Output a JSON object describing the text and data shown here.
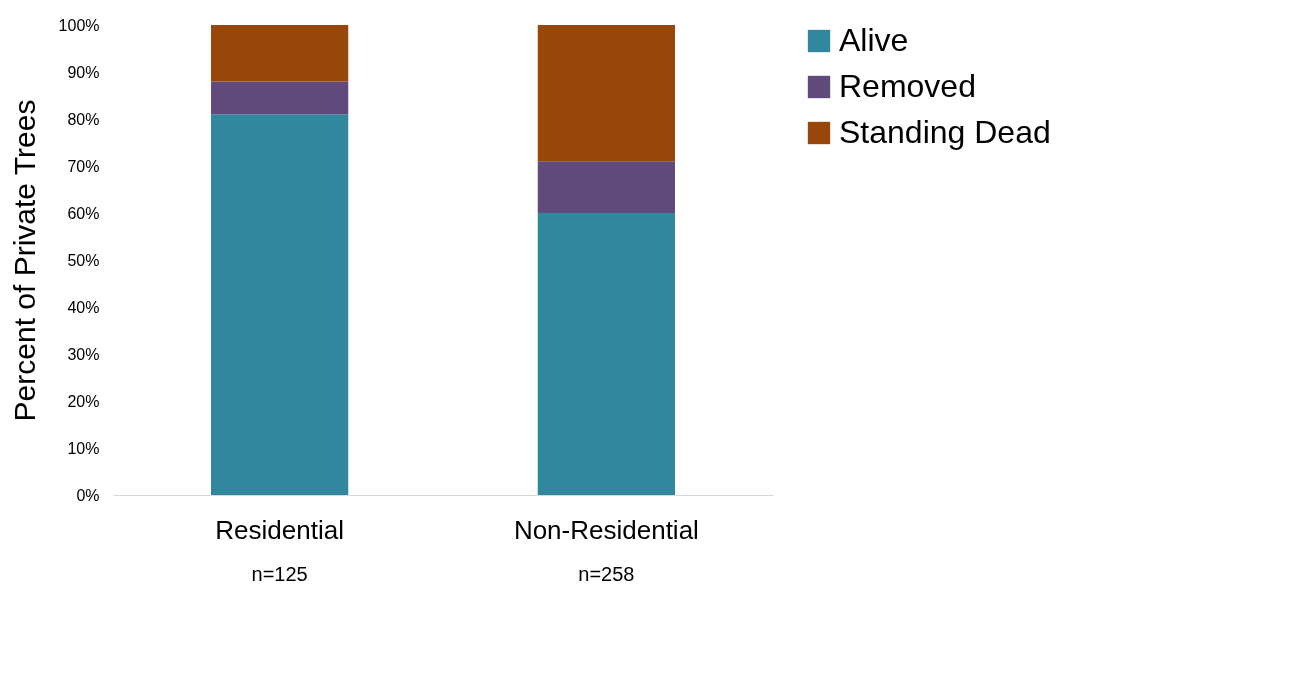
{
  "chart_data": {
    "type": "bar",
    "stacked": true,
    "ylabel": "Percent of Private Trees",
    "categories": [
      "Residential",
      "Non-Residential"
    ],
    "series": [
      {
        "name": "Alive",
        "color": "#31879d",
        "values": [
          81,
          60
        ]
      },
      {
        "name": "Removed",
        "color": "#5f4a7b",
        "values": [
          7,
          11
        ]
      },
      {
        "name": "Standing Dead",
        "color": "#98470a",
        "values": [
          12,
          29
        ]
      }
    ],
    "ylim": [
      0,
      100
    ],
    "yticks": [
      {
        "value": 0,
        "label": "0%"
      },
      {
        "value": 10,
        "label": "10%"
      },
      {
        "value": 20,
        "label": "20%"
      },
      {
        "value": 30,
        "label": "30%"
      },
      {
        "value": 40,
        "label": "40%"
      },
      {
        "value": 50,
        "label": "50%"
      },
      {
        "value": 60,
        "label": "60%"
      },
      {
        "value": 70,
        "label": "70%"
      },
      {
        "value": 80,
        "label": "80%"
      },
      {
        "value": 90,
        "label": "90%"
      },
      {
        "value": 100,
        "label": "100%"
      }
    ],
    "annotations": [
      "n=125",
      "n=258"
    ],
    "grid": false,
    "legend": "right"
  }
}
